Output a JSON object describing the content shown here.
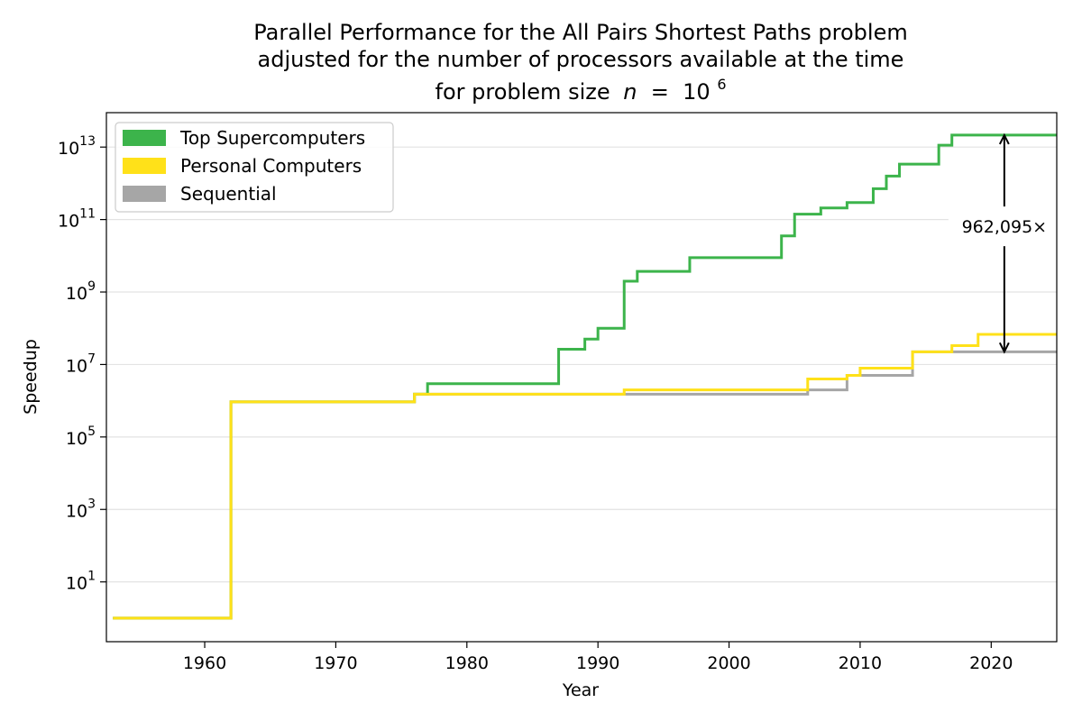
{
  "chart_data": {
    "type": "line",
    "title_lines": [
      "Parallel Performance for the All Pairs Shortest Paths problem",
      "adjusted for the number of processors available at the time",
      "for problem size"
    ],
    "title_math": {
      "var": "n",
      "eq": " = ",
      "base": "10",
      "exp": "6"
    },
    "xlabel": "Year",
    "ylabel": "Speedup",
    "xlim": [
      1952.5,
      2025
    ],
    "ylim_log10": [
      -0.65,
      13.95
    ],
    "y_scale": "log",
    "grid": "horizontal",
    "legend_position": "top-left",
    "xticks": [
      1960,
      1970,
      1980,
      1990,
      2000,
      2010,
      2020
    ],
    "xtick_labels": [
      "1960",
      "1970",
      "1980",
      "1990",
      "2000",
      "2010",
      "2020"
    ],
    "ytick_exponents": [
      1,
      3,
      5,
      7,
      9,
      11,
      13
    ],
    "ytick_labels": [
      {
        "base": "10",
        "exp": "1"
      },
      {
        "base": "10",
        "exp": "3"
      },
      {
        "base": "10",
        "exp": "5"
      },
      {
        "base": "10",
        "exp": "7"
      },
      {
        "base": "10",
        "exp": "9"
      },
      {
        "base": "10",
        "exp": "11"
      },
      {
        "base": "10",
        "exp": "13"
      }
    ],
    "series": [
      {
        "name": "Sequential",
        "color": "#a6a6a6",
        "step_x": [
          1953,
          1962,
          1976,
          2006,
          2009,
          2010,
          2014,
          2017,
          2025
        ],
        "step_y_log10": [
          0,
          5.97,
          6.18,
          6.3,
          6.7,
          6.7,
          7.35,
          7.35
        ]
      },
      {
        "name": "Top Supercomputers",
        "color": "#3cb44b",
        "step_x": [
          1953,
          1962,
          1976,
          1977,
          1987,
          1989,
          1990,
          1992,
          1993,
          1997,
          2004,
          2005,
          2007,
          2009,
          2011,
          2012,
          2013,
          2016,
          2017,
          2025
        ],
        "step_y_log10": [
          0,
          5.97,
          6.18,
          6.47,
          7.42,
          7.7,
          8.0,
          9.3,
          9.57,
          9.95,
          10.55,
          11.15,
          11.32,
          11.47,
          11.85,
          12.2,
          12.53,
          13.05,
          13.33
        ]
      },
      {
        "name": "Personal Computers",
        "color": "#ffe119",
        "step_x": [
          1953,
          1962,
          1976,
          1992,
          2006,
          2009,
          2010,
          2014,
          2017,
          2019,
          2025
        ],
        "step_y_log10": [
          0,
          5.97,
          6.18,
          6.3,
          6.6,
          6.7,
          6.9,
          7.35,
          7.52,
          7.83
        ]
      }
    ],
    "legend_order": [
      "Top Supercomputers",
      "Personal Computers",
      "Sequential"
    ],
    "annotation": {
      "text": "962,095×",
      "x": 2021,
      "y_log10_top": 13.33,
      "y_log10_bottom": 7.35
    }
  }
}
